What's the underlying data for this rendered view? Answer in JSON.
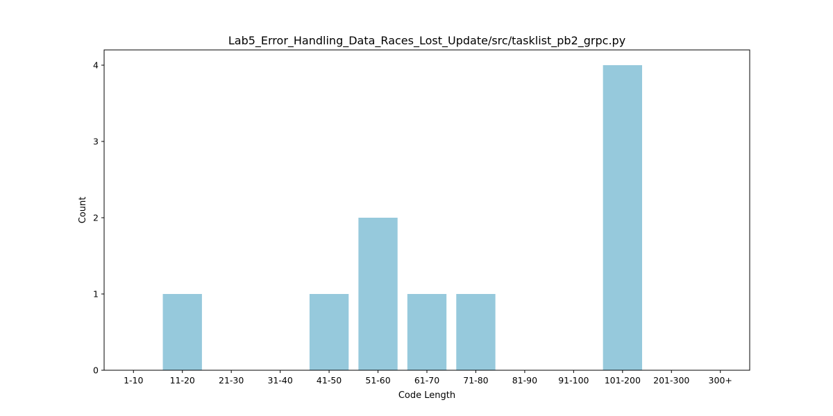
{
  "chart_data": {
    "type": "bar",
    "title": "Lab5_Error_Handling_Data_Races_Lost_Update/src/tasklist_pb2_grpc.py",
    "xlabel": "Code Length",
    "ylabel": "Count",
    "categories": [
      "1-10",
      "11-20",
      "21-30",
      "31-40",
      "41-50",
      "51-60",
      "61-70",
      "71-80",
      "81-90",
      "91-100",
      "101-200",
      "201-300",
      "300+"
    ],
    "values": [
      0,
      1,
      0,
      0,
      1,
      2,
      1,
      1,
      0,
      0,
      4,
      0,
      0
    ],
    "ylim": [
      0,
      4.2
    ],
    "yticks": [
      0,
      1,
      2,
      3,
      4
    ],
    "bar_color": "#96c9dc",
    "grid": false,
    "legend": "none"
  }
}
